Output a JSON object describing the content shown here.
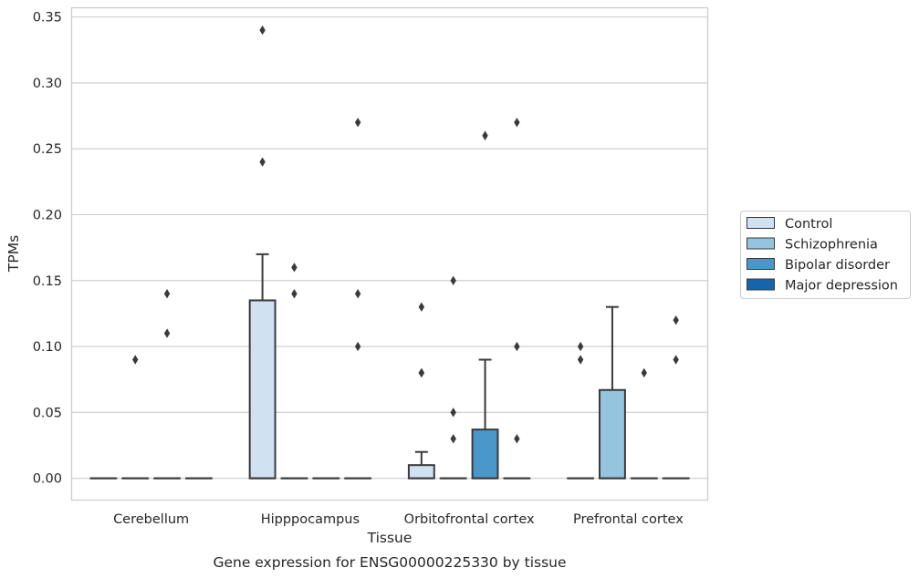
{
  "caption": "Gene expression for ENSG00000225330 by tissue",
  "chart_data": {
    "type": "box",
    "xlabel": "Tissue",
    "ylabel": "TPMs",
    "ylim": [
      -0.0165,
      0.357
    ],
    "yticks": [
      0.0,
      0.05,
      0.1,
      0.15,
      0.2,
      0.25,
      0.3,
      0.35
    ],
    "ytick_labels": [
      "0.00",
      "0.05",
      "0.10",
      "0.15",
      "0.20",
      "0.25",
      "0.30",
      "0.35"
    ],
    "grid": "horizontal",
    "legend_position": "right",
    "categories": [
      "Cerebellum",
      "Hipppocampus",
      "Orbitofrontal cortex",
      "Prefrontal cortex"
    ],
    "series": [
      {
        "name": "Control",
        "color": "#d0e1f2",
        "boxes": [
          {
            "q1": 0,
            "median": 0,
            "q3": 0,
            "whislo": 0,
            "whishi": 0,
            "fliers": []
          },
          {
            "q1": 0,
            "median": 0,
            "q3": 0.135,
            "whislo": 0,
            "whishi": 0.17,
            "fliers": [
              0.24,
              0.34
            ]
          },
          {
            "q1": 0,
            "median": 0,
            "q3": 0.01,
            "whislo": 0,
            "whishi": 0.02,
            "fliers": [
              0.08,
              0.08,
              0.13
            ]
          },
          {
            "q1": 0,
            "median": 0,
            "q3": 0,
            "whislo": 0,
            "whishi": 0,
            "fliers": [
              0.09,
              0.1
            ]
          }
        ]
      },
      {
        "name": "Schizophrenia",
        "color": "#94c4df",
        "boxes": [
          {
            "q1": 0,
            "median": 0,
            "q3": 0,
            "whislo": 0,
            "whishi": 0,
            "fliers": [
              0.09
            ]
          },
          {
            "q1": 0,
            "median": 0,
            "q3": 0,
            "whislo": 0,
            "whishi": 0,
            "fliers": [
              0.14,
              0.16
            ]
          },
          {
            "q1": 0,
            "median": 0,
            "q3": 0,
            "whislo": 0,
            "whishi": 0,
            "fliers": [
              0.03,
              0.05,
              0.15
            ]
          },
          {
            "q1": 0,
            "median": 0,
            "q3": 0.067,
            "whislo": 0,
            "whishi": 0.13,
            "fliers": []
          }
        ]
      },
      {
        "name": "Bipolar disorder",
        "color": "#4a98c9",
        "boxes": [
          {
            "q1": 0,
            "median": 0,
            "q3": 0,
            "whislo": 0,
            "whishi": 0,
            "fliers": [
              0.11,
              0.14
            ]
          },
          {
            "q1": 0,
            "median": 0,
            "q3": 0,
            "whislo": 0,
            "whishi": 0,
            "fliers": []
          },
          {
            "q1": 0,
            "median": 0,
            "q3": 0.037,
            "whislo": 0,
            "whishi": 0.09,
            "fliers": [
              0.26
            ]
          },
          {
            "q1": 0,
            "median": 0,
            "q3": 0,
            "whislo": 0,
            "whishi": 0,
            "fliers": [
              0.08
            ]
          }
        ]
      },
      {
        "name": "Major depression",
        "color": "#1764ab",
        "boxes": [
          {
            "q1": 0,
            "median": 0,
            "q3": 0,
            "whislo": 0,
            "whishi": 0,
            "fliers": []
          },
          {
            "q1": 0,
            "median": 0,
            "q3": 0,
            "whislo": 0,
            "whishi": 0,
            "fliers": [
              0.1,
              0.14,
              0.27
            ]
          },
          {
            "q1": 0,
            "median": 0,
            "q3": 0,
            "whislo": 0,
            "whishi": 0,
            "fliers": [
              0.03,
              0.1,
              0.27
            ]
          },
          {
            "q1": 0,
            "median": 0,
            "q3": 0,
            "whislo": 0,
            "whishi": 0,
            "fliers": [
              0.09,
              0.12
            ]
          }
        ]
      }
    ]
  }
}
